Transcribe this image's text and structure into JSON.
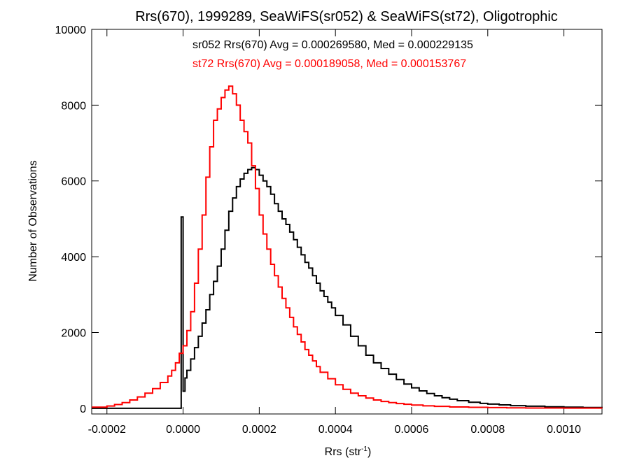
{
  "chart_data": {
    "type": "line",
    "title": "Rrs(670), 1999289, SeaWiFS(sr052) & SeaWiFS(st72), Oligotrophic",
    "xlabel": "Rrs (str",
    "xlabel_sup": "-1",
    "xlabel_end": ")",
    "ylabel": "Number of Observations",
    "xlim": [
      -0.00024,
      0.0011
    ],
    "ylim": [
      -150,
      10000
    ],
    "xticks": [
      -0.0002,
      0.0,
      0.0002,
      0.0004,
      0.0006,
      0.0008,
      0.001
    ],
    "xtick_labels": [
      "-0.0002",
      "0.0000",
      "0.0002",
      "0.0004",
      "0.0006",
      "0.0008",
      "0.0010"
    ],
    "yticks": [
      0,
      2000,
      4000,
      6000,
      8000,
      10000
    ],
    "ytick_labels": [
      "0",
      "2000",
      "4000",
      "6000",
      "8000",
      "10000"
    ],
    "legend_placement": "top-center",
    "annotations": [
      {
        "text": "sr052 Rrs(670) Avg = 0.000269580, Med = 0.000229135",
        "color": "#000000"
      },
      {
        "text": "st72 Rrs(670) Avg = 0.000189058, Med = 0.000153767",
        "color": "#ff0000"
      }
    ],
    "bin_width": 5e-06,
    "series": [
      {
        "name": "sr052",
        "color": "#000000",
        "style": "step",
        "x": [
          -0.00024,
          -1e-05,
          -5e-06,
          0.0,
          5e-06,
          1e-05,
          2e-05,
          3e-05,
          4e-05,
          5e-05,
          6e-05,
          7e-05,
          8e-05,
          9e-05,
          0.0001,
          0.00011,
          0.00012,
          0.00013,
          0.00014,
          0.00015,
          0.00016,
          0.00017,
          0.00018,
          0.00019,
          0.0002,
          0.00021,
          0.00022,
          0.00023,
          0.00024,
          0.00025,
          0.00026,
          0.00027,
          0.00028,
          0.00029,
          0.0003,
          0.00031,
          0.00032,
          0.00033,
          0.00034,
          0.00035,
          0.00036,
          0.00037,
          0.00038,
          0.00039,
          0.0004,
          0.00042,
          0.00044,
          0.00046,
          0.00048,
          0.0005,
          0.00052,
          0.00054,
          0.00056,
          0.00058,
          0.0006,
          0.00062,
          0.00064,
          0.00066,
          0.00068,
          0.0007,
          0.00072,
          0.00075,
          0.00078,
          0.0008,
          0.00083,
          0.00086,
          0.0009,
          0.00095,
          0.001,
          0.00105,
          0.0011
        ],
        "y": [
          0,
          0,
          5050,
          450,
          800,
          1000,
          1300,
          1600,
          1900,
          2250,
          2600,
          3000,
          3350,
          3750,
          4200,
          4700,
          5200,
          5550,
          5850,
          6050,
          6200,
          6300,
          6350,
          6300,
          6150,
          6000,
          5850,
          5650,
          5400,
          5200,
          5000,
          4850,
          4650,
          4450,
          4250,
          4050,
          3850,
          3700,
          3500,
          3300,
          3100,
          2950,
          2800,
          2650,
          2450,
          2200,
          1900,
          1650,
          1400,
          1200,
          1050,
          900,
          760,
          640,
          540,
          460,
          390,
          330,
          280,
          240,
          200,
          160,
          130,
          110,
          90,
          70,
          55,
          40,
          30,
          20,
          15
        ]
      },
      {
        "name": "st72",
        "color": "#ff0000",
        "style": "step",
        "x": [
          -0.00024,
          -0.0002,
          -0.00018,
          -0.00016,
          -0.00014,
          -0.00012,
          -0.0001,
          -8e-05,
          -6e-05,
          -4e-05,
          -3e-05,
          -2e-05,
          -1e-05,
          0.0,
          1e-05,
          2e-05,
          3e-05,
          4e-05,
          5e-05,
          6e-05,
          7e-05,
          8e-05,
          9e-05,
          0.0001,
          0.00011,
          0.00012,
          0.00013,
          0.00014,
          0.00015,
          0.00016,
          0.00017,
          0.00018,
          0.00019,
          0.0002,
          0.00021,
          0.00022,
          0.00023,
          0.00024,
          0.00025,
          0.00026,
          0.00027,
          0.00028,
          0.00029,
          0.0003,
          0.00031,
          0.00032,
          0.00033,
          0.00034,
          0.00035,
          0.00036,
          0.00038,
          0.0004,
          0.00042,
          0.00044,
          0.00046,
          0.00048,
          0.0005,
          0.00052,
          0.00054,
          0.00056,
          0.00058,
          0.0006,
          0.00063,
          0.00066,
          0.0007,
          0.00075,
          0.0008,
          0.00085,
          0.0009,
          0.001,
          0.0011
        ],
        "y": [
          30,
          60,
          100,
          150,
          220,
          300,
          400,
          520,
          680,
          850,
          1000,
          1200,
          1450,
          1650,
          2050,
          2550,
          3300,
          4200,
          5100,
          6100,
          6900,
          7600,
          7900,
          8200,
          8400,
          8500,
          8300,
          8000,
          7600,
          7300,
          7000,
          6400,
          5800,
          5100,
          4600,
          4200,
          3800,
          3500,
          3200,
          2900,
          2650,
          2400,
          2150,
          1950,
          1750,
          1550,
          1400,
          1250,
          1100,
          950,
          780,
          620,
          500,
          400,
          330,
          270,
          220,
          180,
          150,
          125,
          105,
          85,
          65,
          50,
          35,
          25,
          18,
          12,
          8,
          4,
          2
        ]
      }
    ]
  }
}
